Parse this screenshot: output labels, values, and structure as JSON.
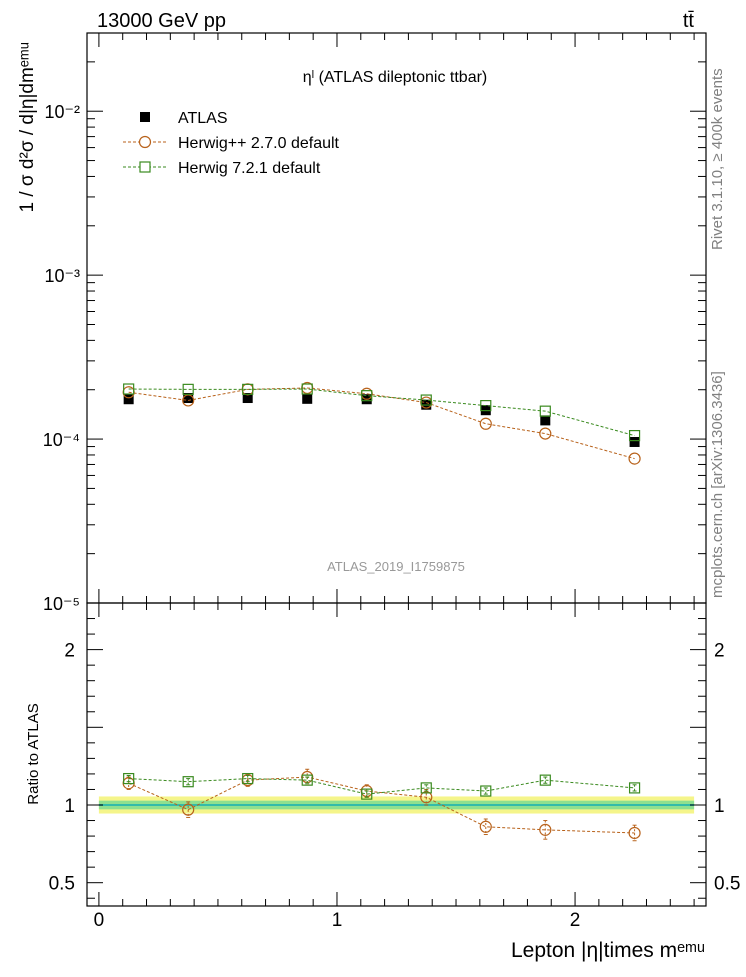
{
  "header": {
    "energy_label": "13000 GeV pp",
    "process_label": "tt̄"
  },
  "side_labels": {
    "rivet": "Rivet 3.1.10, ≥ 400k events",
    "source": "mcplots.cern.ch [arXiv:1306.3436]"
  },
  "chart_data": [
    {
      "type": "line",
      "title": "ηˡ (ATLAS dileptonic ttbar)",
      "watermark": "ATLAS_2019_I1759875",
      "ylabel": "1 / σ d²σ / d|η|dmᵉᵐᵘ",
      "yscale": "log",
      "ylim": [
        1e-05,
        0.03
      ],
      "xlim": [
        -0.05,
        2.55
      ],
      "ytick_labels": [
        "10⁻⁵",
        "10⁻⁴",
        "10⁻³",
        "10⁻²"
      ],
      "ytick_values": [
        1e-05,
        0.0001,
        0.001,
        0.01
      ],
      "legend_position": "top-left",
      "x": [
        0.125,
        0.375,
        0.625,
        0.875,
        1.125,
        1.375,
        1.625,
        1.875,
        2.25
      ],
      "series": [
        {
          "name": "ATLAS",
          "color": "#000000",
          "marker": "filled-square",
          "values": [
            0.000175,
            0.000178,
            0.000178,
            0.000176,
            0.000175,
            0.000162,
            0.00015,
            0.00013,
            9.6e-05
          ]
        },
        {
          "name": "Herwig++ 2.7.0 default",
          "color": "#b8621b",
          "marker": "open-circle",
          "values": [
            0.000193,
            0.000172,
            0.000201,
            0.000205,
            0.000189,
            0.000167,
            0.000124,
            0.000108,
            7.6e-05
          ]
        },
        {
          "name": "Herwig 7.2.1 default",
          "color": "#3a8a1f",
          "marker": "open-square",
          "values": [
            0.000202,
            0.000201,
            0.000201,
            0.000202,
            0.000184,
            0.000173,
            0.00016,
            0.000148,
            0.000105
          ]
        }
      ]
    },
    {
      "type": "line",
      "ylabel": "Ratio to ATLAS",
      "xlabel": "Lepton |η|times mᵉᵐᵘ",
      "ylim": [
        0.35,
        2.3
      ],
      "xlim": [
        -0.05,
        2.55
      ],
      "ytick_values": [
        0.5,
        1,
        2
      ],
      "ytick_labels": [
        "0.5",
        "1",
        "2"
      ],
      "xtick_values": [
        0,
        1,
        2
      ],
      "xtick_labels": [
        "0",
        "1",
        "2"
      ],
      "x": [
        0.125,
        0.375,
        0.625,
        0.875,
        1.125,
        1.375,
        1.625,
        1.875,
        2.25
      ],
      "band": {
        "outer_color": "#f5f58a",
        "inner_color": "#8fe08f",
        "center_color": "#33bbaa",
        "outer_half_width": 0.055,
        "inner_half_width": 0.028
      },
      "series": [
        {
          "name": "Herwig++ 2.7.0 default",
          "color": "#b8621b",
          "marker": "open-circle",
          "values": [
            1.14,
            0.97,
            1.16,
            1.18,
            1.09,
            1.05,
            0.86,
            0.84,
            0.82
          ],
          "errors": [
            0.04,
            0.05,
            0.04,
            0.05,
            0.04,
            0.05,
            0.05,
            0.06,
            0.05
          ]
        },
        {
          "name": "Herwig 7.2.1 default",
          "color": "#3a8a1f",
          "marker": "open-square",
          "values": [
            1.17,
            1.15,
            1.17,
            1.16,
            1.07,
            1.11,
            1.09,
            1.16,
            1.11
          ],
          "errors": [
            0.02,
            0.02,
            0.02,
            0.02,
            0.02,
            0.02,
            0.02,
            0.02,
            0.02
          ]
        }
      ]
    }
  ]
}
